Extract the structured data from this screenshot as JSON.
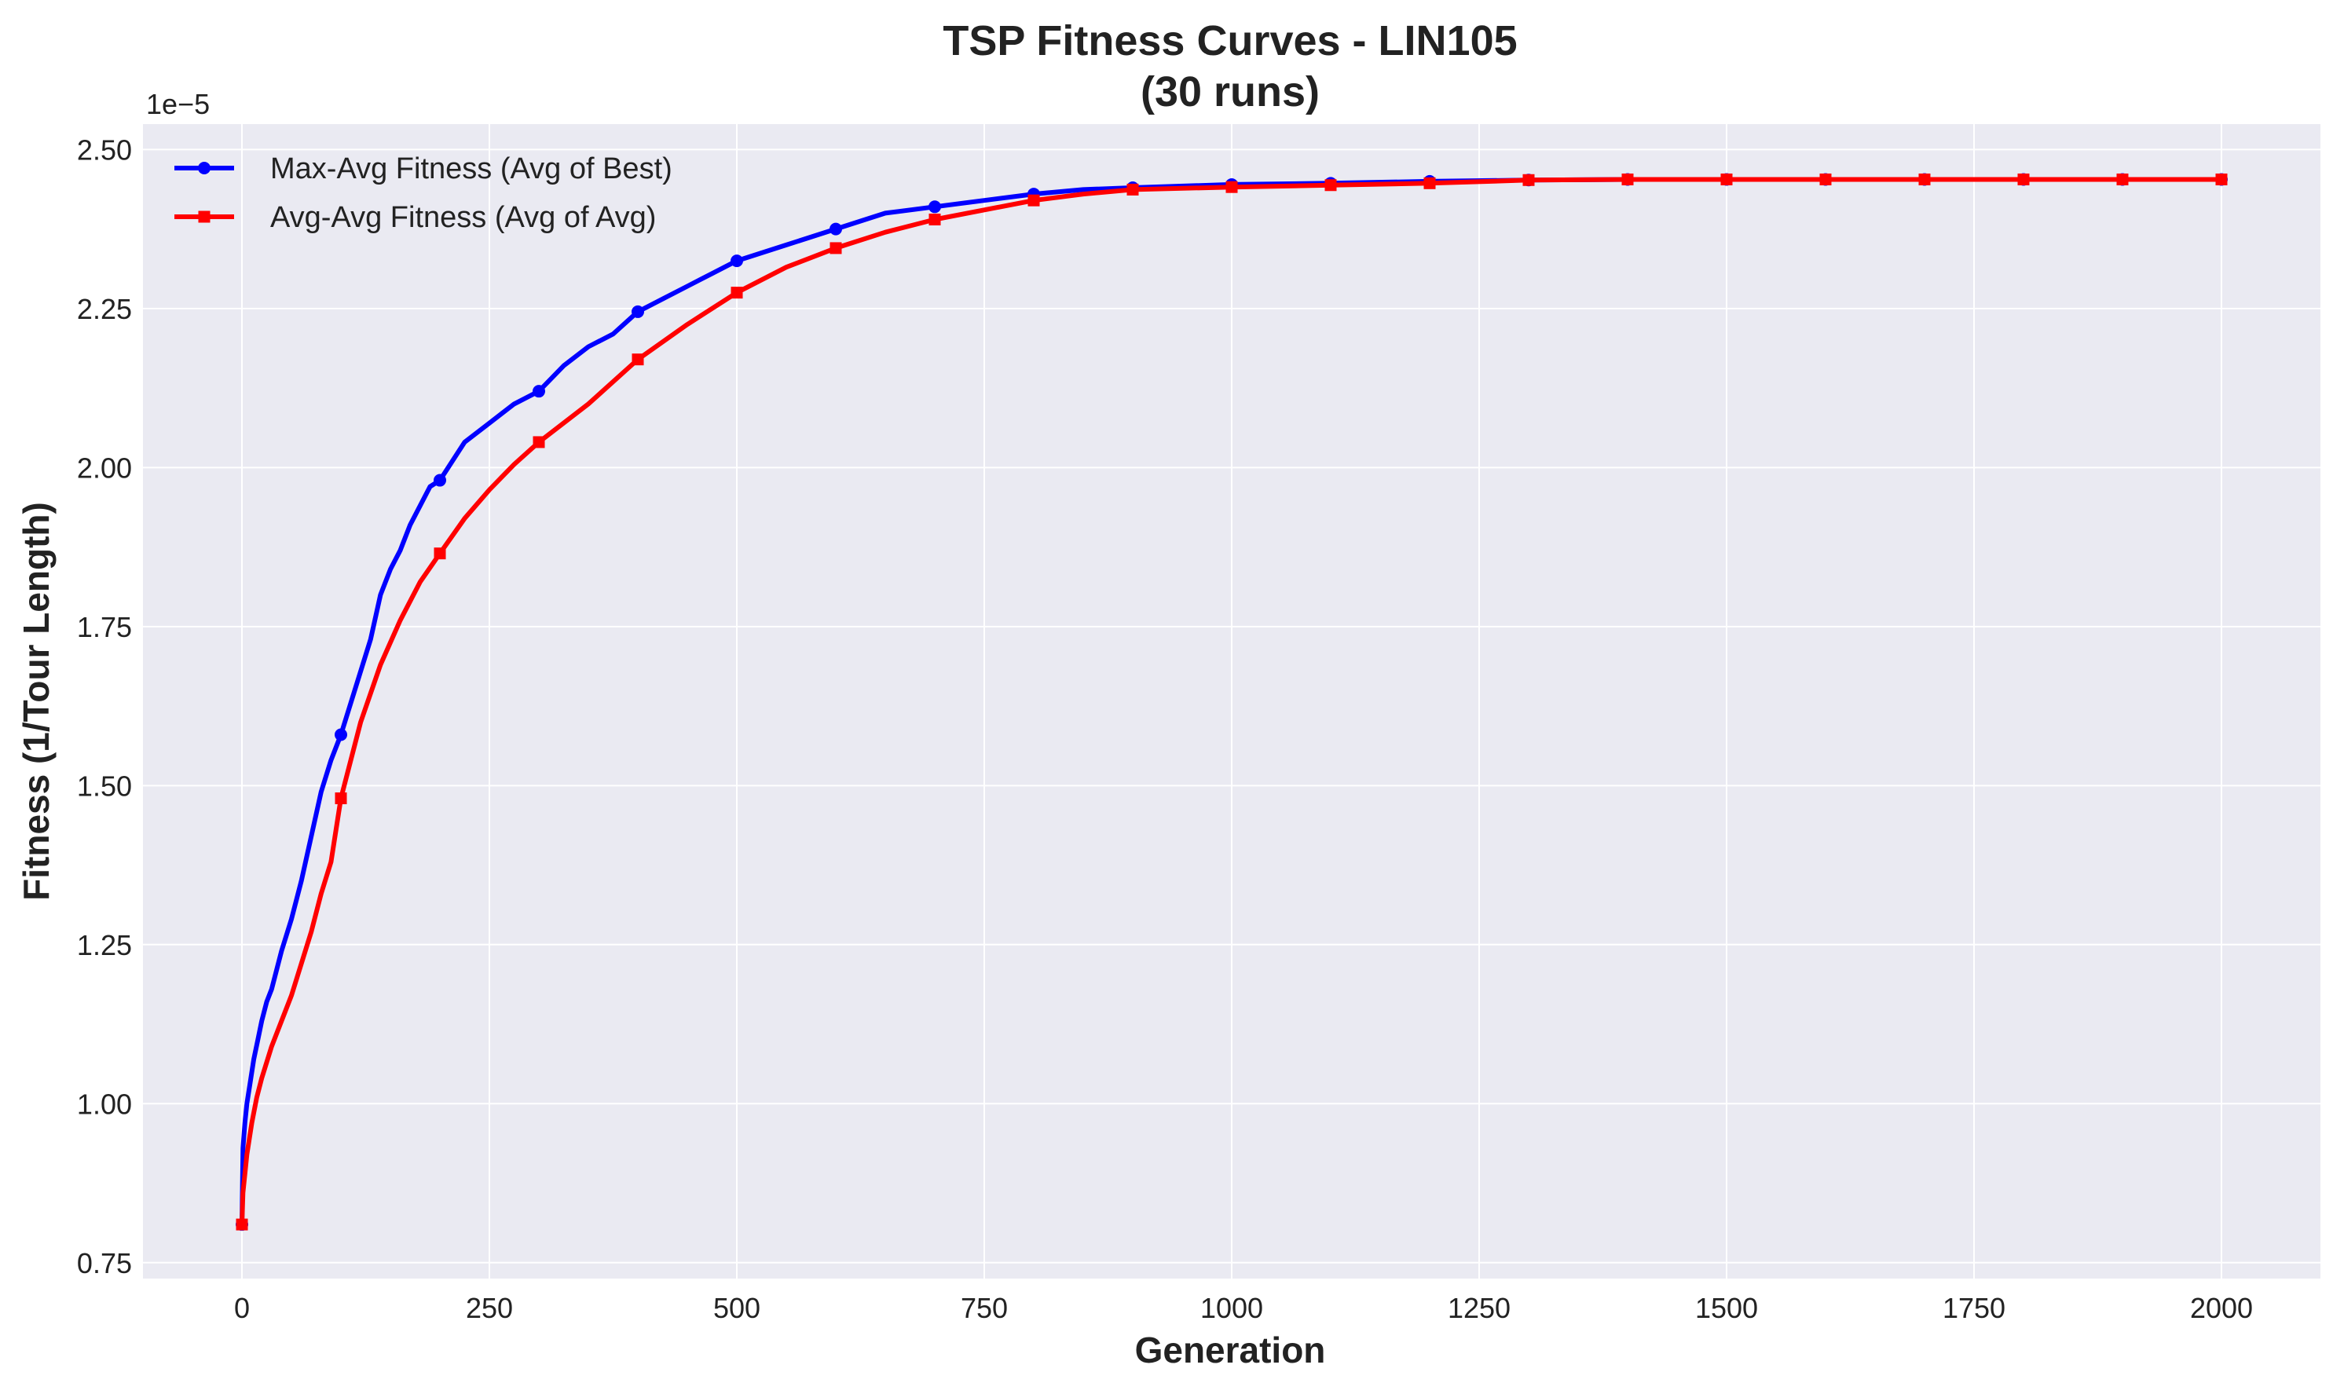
{
  "chart_data": {
    "type": "line",
    "title": "TSP Fitness Curves - LIN105",
    "subtitle": "(30 runs)",
    "xlabel": "Generation",
    "ylabel": "Fitness (1/Tour Length)",
    "y_offset_label": "1e−5",
    "xlim": [
      -100,
      2100
    ],
    "ylim": [
      0.725,
      2.54
    ],
    "x_ticks": [
      0,
      250,
      500,
      750,
      1000,
      1250,
      1500,
      1750,
      2000
    ],
    "y_ticks": [
      0.75,
      1.0,
      1.25,
      1.5,
      1.75,
      2.0,
      2.25,
      2.5
    ],
    "y_tick_labels": [
      "0.75",
      "1.00",
      "1.25",
      "1.50",
      "1.75",
      "2.00",
      "2.25",
      "2.50"
    ],
    "grid": true,
    "legend_position": "upper-left",
    "background": "#eaeaf2",
    "grid_color": "#ffffff",
    "series": [
      {
        "name": "Max-Avg Fitness (Avg of Best)",
        "color": "#0000ff",
        "marker": "circle",
        "x": [
          0,
          1,
          3,
          5,
          8,
          12,
          16,
          20,
          25,
          30,
          40,
          50,
          60,
          70,
          80,
          90,
          100,
          110,
          120,
          130,
          140,
          150,
          160,
          170,
          180,
          190,
          200,
          225,
          250,
          275,
          300,
          325,
          350,
          375,
          400,
          425,
          450,
          475,
          500,
          550,
          600,
          650,
          700,
          750,
          800,
          850,
          900,
          1000,
          1100,
          1200,
          1300,
          1400,
          1500,
          1600,
          1700,
          1800,
          1900,
          2000
        ],
        "y": [
          0.81,
          0.93,
          0.97,
          1.0,
          1.03,
          1.07,
          1.1,
          1.13,
          1.16,
          1.18,
          1.24,
          1.29,
          1.35,
          1.42,
          1.49,
          1.54,
          1.58,
          1.63,
          1.68,
          1.73,
          1.8,
          1.84,
          1.87,
          1.91,
          1.94,
          1.97,
          1.98,
          2.04,
          2.07,
          2.1,
          2.12,
          2.16,
          2.19,
          2.21,
          2.245,
          2.265,
          2.285,
          2.305,
          2.325,
          2.35,
          2.375,
          2.4,
          2.41,
          2.42,
          2.43,
          2.437,
          2.44,
          2.445,
          2.447,
          2.45,
          2.452,
          2.453,
          2.453,
          2.453,
          2.453,
          2.453,
          2.453,
          2.453
        ],
        "markers_at": [
          0,
          100,
          200,
          300,
          400,
          500,
          600,
          700,
          800,
          900,
          1000,
          1100,
          1200,
          1300,
          1400,
          1500,
          1600,
          1700,
          1800,
          1900,
          2000
        ]
      },
      {
        "name": "Avg-Avg Fitness (Avg of Avg)",
        "color": "#ff0000",
        "marker": "square",
        "x": [
          0,
          1,
          3,
          5,
          10,
          15,
          20,
          30,
          40,
          50,
          60,
          70,
          80,
          90,
          100,
          120,
          140,
          160,
          180,
          200,
          225,
          250,
          275,
          300,
          350,
          400,
          450,
          500,
          550,
          600,
          650,
          700,
          750,
          800,
          850,
          900,
          1000,
          1100,
          1200,
          1300,
          1400,
          1500,
          1600,
          1700,
          1800,
          1900,
          2000
        ],
        "y": [
          0.81,
          0.86,
          0.89,
          0.92,
          0.97,
          1.01,
          1.04,
          1.09,
          1.13,
          1.17,
          1.22,
          1.27,
          1.33,
          1.38,
          1.48,
          1.6,
          1.69,
          1.76,
          1.82,
          1.865,
          1.92,
          1.965,
          2.005,
          2.04,
          2.1,
          2.17,
          2.225,
          2.275,
          2.315,
          2.345,
          2.37,
          2.39,
          2.405,
          2.42,
          2.43,
          2.437,
          2.441,
          2.444,
          2.447,
          2.452,
          2.453,
          2.453,
          2.453,
          2.453,
          2.453,
          2.453,
          2.453
        ],
        "markers_at": [
          0,
          100,
          200,
          300,
          400,
          500,
          600,
          700,
          800,
          900,
          1000,
          1100,
          1200,
          1300,
          1400,
          1500,
          1600,
          1700,
          1800,
          1900,
          2000
        ]
      }
    ]
  }
}
